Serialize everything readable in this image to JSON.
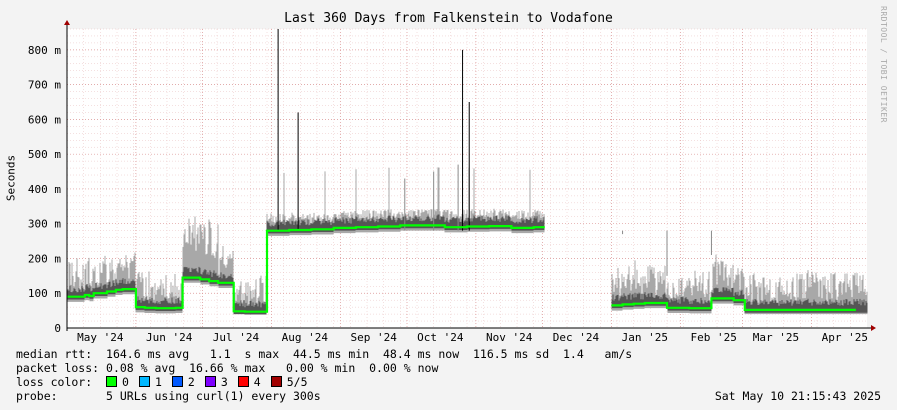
{
  "chart_data": {
    "type": "line",
    "title": "Last 360 Days from Falkenstein to Vodafone",
    "ylabel": "Seconds",
    "ylim": [
      0,
      860
    ],
    "yticks": [
      {
        "value": 0,
        "label": "0"
      },
      {
        "value": 100,
        "label": "100 m"
      },
      {
        "value": 200,
        "label": "200 m"
      },
      {
        "value": 300,
        "label": "300 m"
      },
      {
        "value": 400,
        "label": "400 m"
      },
      {
        "value": 500,
        "label": "500 m"
      },
      {
        "value": 600,
        "label": "600 m"
      },
      {
        "value": 700,
        "label": "700 m"
      },
      {
        "value": 800,
        "label": "800 m"
      }
    ],
    "xticks": [
      "May '24",
      "Jun '24",
      "Jul '24",
      "Aug '24",
      "Sep '24",
      "Oct '24",
      "Nov '24",
      "Dec '24",
      "Jan '25",
      "Feb '25",
      "Mar '25",
      "Apr '25"
    ],
    "grid": true,
    "series": [
      {
        "x": [
          0,
          8,
          10,
          12,
          18,
          22,
          25,
          31,
          35,
          40,
          49,
          52,
          60,
          64,
          68,
          75,
          80,
          90,
          100,
          110,
          120,
          130,
          140,
          150,
          160,
          170,
          180,
          190,
          200,
          210,
          215,
          245,
          250,
          255,
          260,
          270,
          280,
          290,
          300,
          305,
          310
        ],
        "values": [
          90,
          95,
          92,
          100,
          105,
          110,
          112,
          60,
          58,
          57,
          58,
          145,
          140,
          135,
          130,
          48,
          47,
          280,
          282,
          284,
          288,
          290,
          292,
          295,
          295,
          290,
          292,
          293,
          288,
          290,
          null,
          65,
          68,
          70,
          72,
          58,
          57,
          85,
          80,
          52,
          52
        ]
      }
    ]
  },
  "legend": {
    "median_label": "median rtt:",
    "median_values": "164.6 ms avg   1.1  s max  44.5 ms min  48.4 ms now  116.5 ms sd  1.4   am/s",
    "loss_label": "packet loss:",
    "loss_values": "0.08 % avg  16.66 % max   0.00 % min  0.00 % now",
    "color_label": "loss color:",
    "colors": [
      {
        "label": "0",
        "color": "#00ff00"
      },
      {
        "label": "1",
        "color": "#00b8ff"
      },
      {
        "label": "2",
        "color": "#0059ff"
      },
      {
        "label": "3",
        "color": "#7e00ff"
      },
      {
        "label": "4",
        "color": "#ff0000"
      },
      {
        "label": "5/5",
        "color": "#a10000"
      }
    ],
    "probe_label": "probe:",
    "probe_text": "5 URLs using curl(1) every 300s",
    "timestamp": "Sat May 10 21:15:43 2025"
  },
  "watermark": "RRDTOOL / TOBI OETIKER"
}
